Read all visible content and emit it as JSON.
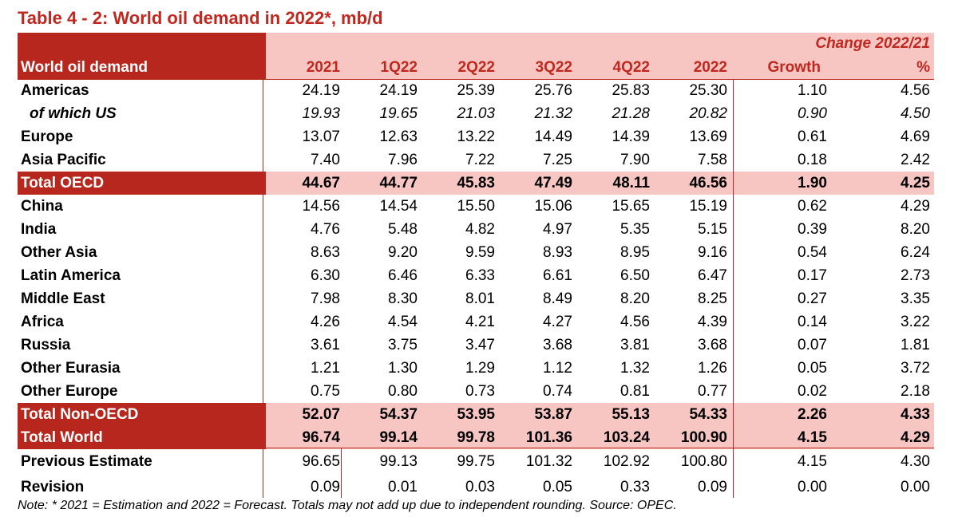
{
  "title": "Table 4 - 2: World oil demand in 2022*, mb/d",
  "header": {
    "label": "World oil demand",
    "columns": [
      "2021",
      "1Q22",
      "2Q22",
      "3Q22",
      "4Q22",
      "2022"
    ],
    "change_group": "Change 2022/21",
    "growth": "Growth",
    "pct": "%"
  },
  "rows": [
    {
      "label": "Americas",
      "values": [
        "24.19",
        "24.19",
        "25.39",
        "25.76",
        "25.83",
        "25.30",
        "1.10",
        "4.56"
      ]
    },
    {
      "label": "of which US",
      "values": [
        "19.93",
        "19.65",
        "21.03",
        "21.32",
        "21.28",
        "20.82",
        "0.90",
        "4.50"
      ]
    },
    {
      "label": "Europe",
      "values": [
        "13.07",
        "12.63",
        "13.22",
        "14.49",
        "14.39",
        "13.69",
        "0.61",
        "4.69"
      ]
    },
    {
      "label": "Asia Pacific",
      "values": [
        "7.40",
        "7.96",
        "7.22",
        "7.25",
        "7.90",
        "7.58",
        "0.18",
        "2.42"
      ]
    },
    {
      "label": "Total OECD",
      "values": [
        "44.67",
        "44.77",
        "45.83",
        "47.49",
        "48.11",
        "46.56",
        "1.90",
        "4.25"
      ]
    },
    {
      "label": "China",
      "values": [
        "14.56",
        "14.54",
        "15.50",
        "15.06",
        "15.65",
        "15.19",
        "0.62",
        "4.29"
      ]
    },
    {
      "label": "India",
      "values": [
        "4.76",
        "5.48",
        "4.82",
        "4.97",
        "5.35",
        "5.15",
        "0.39",
        "8.20"
      ]
    },
    {
      "label": "Other Asia",
      "values": [
        "8.63",
        "9.20",
        "9.59",
        "8.93",
        "8.95",
        "9.16",
        "0.54",
        "6.24"
      ]
    },
    {
      "label": "Latin America",
      "values": [
        "6.30",
        "6.46",
        "6.33",
        "6.61",
        "6.50",
        "6.47",
        "0.17",
        "2.73"
      ]
    },
    {
      "label": "Middle East",
      "values": [
        "7.98",
        "8.30",
        "8.01",
        "8.49",
        "8.20",
        "8.25",
        "0.27",
        "3.35"
      ]
    },
    {
      "label": "Africa",
      "values": [
        "4.26",
        "4.54",
        "4.21",
        "4.27",
        "4.56",
        "4.39",
        "0.14",
        "3.22"
      ]
    },
    {
      "label": "Russia",
      "values": [
        "3.61",
        "3.75",
        "3.47",
        "3.68",
        "3.81",
        "3.68",
        "0.07",
        "1.81"
      ]
    },
    {
      "label": "Other Eurasia",
      "values": [
        "1.21",
        "1.30",
        "1.29",
        "1.12",
        "1.32",
        "1.26",
        "0.05",
        "3.72"
      ]
    },
    {
      "label": "Other Europe",
      "values": [
        "0.75",
        "0.80",
        "0.73",
        "0.74",
        "0.81",
        "0.77",
        "0.02",
        "2.18"
      ]
    },
    {
      "label": "Total Non-OECD",
      "values": [
        "52.07",
        "54.37",
        "53.95",
        "53.87",
        "55.13",
        "54.33",
        "2.26",
        "4.33"
      ]
    },
    {
      "label": "Total World",
      "values": [
        "96.74",
        "99.14",
        "99.78",
        "101.36",
        "103.24",
        "100.90",
        "4.15",
        "4.29"
      ]
    },
    {
      "label": "Previous Estimate",
      "values": [
        "96.65",
        "99.13",
        "99.75",
        "101.32",
        "102.92",
        "100.80",
        "4.15",
        "4.30"
      ]
    },
    {
      "label": "Revision",
      "values": [
        "0.09",
        "0.01",
        "0.03",
        "0.05",
        "0.33",
        "0.09",
        "0.00",
        "0.00"
      ]
    }
  ],
  "note": "Note: * 2021 = Estimation and 2022 = Forecast. Totals may not add up due to independent rounding. Source: OPEC.",
  "colors": {
    "accent": "#b7271d",
    "highlight": "#f7c6c3",
    "title": "#c0281f"
  }
}
